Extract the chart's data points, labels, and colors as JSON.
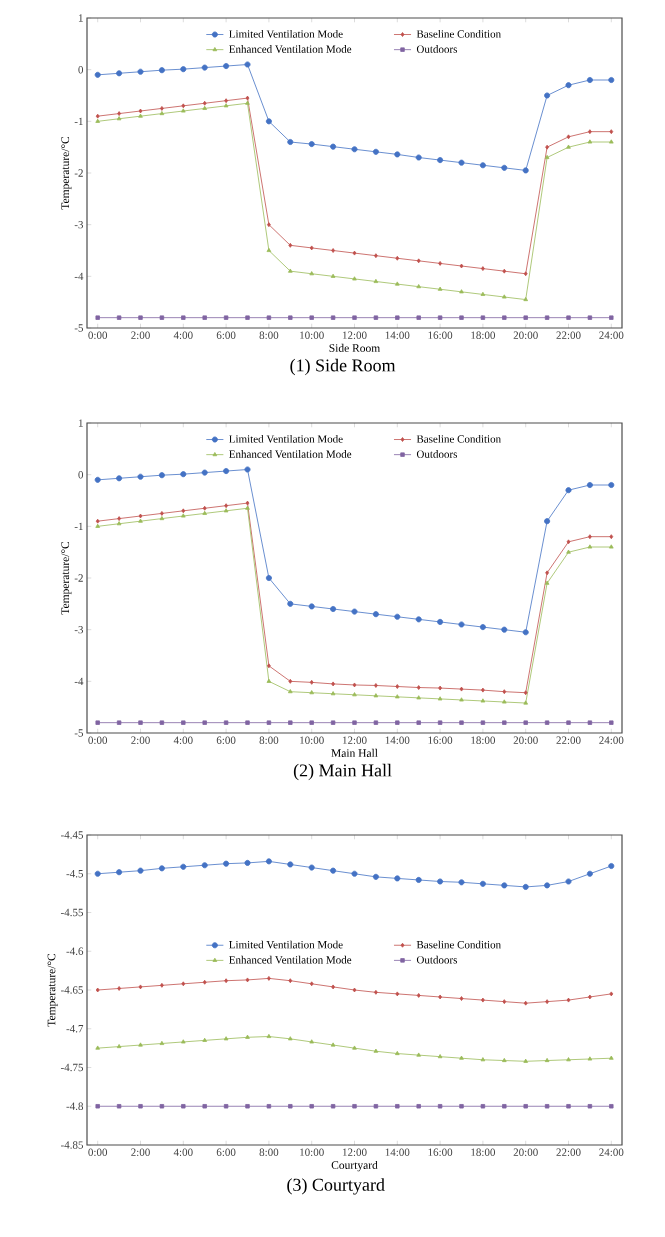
{
  "chart_data": [
    {
      "type": "line",
      "xlabel": "Side Room",
      "ylabel": "Temperature/°C",
      "annotations": [
        "(1) Side Room"
      ],
      "legend": "top",
      "x": [
        0,
        1,
        2,
        3,
        4,
        5,
        6,
        7,
        8,
        9,
        10,
        11,
        12,
        13,
        14,
        15,
        16,
        17,
        18,
        19,
        20,
        21,
        22,
        23,
        24
      ],
      "xlim": [
        -0.5,
        24.5
      ],
      "ylim": [
        -5,
        1
      ],
      "yticks": [
        -5,
        -4,
        -3,
        -2,
        -1,
        0,
        1
      ],
      "xticks": [
        {
          "value": 0,
          "label": "0:00"
        },
        {
          "value": 2,
          "label": "2:00"
        },
        {
          "value": 4,
          "label": "4:00"
        },
        {
          "value": 6,
          "label": "6:00"
        },
        {
          "value": 8,
          "label": "8:00"
        },
        {
          "value": 10,
          "label": "10:00"
        },
        {
          "value": 12,
          "label": "12:00"
        },
        {
          "value": 14,
          "label": "14:00"
        },
        {
          "value": 16,
          "label": "16:00"
        },
        {
          "value": 18,
          "label": "18:00"
        },
        {
          "value": 20,
          "label": "20:00"
        },
        {
          "value": 22,
          "label": "22:00"
        },
        {
          "value": 24,
          "label": "24:00"
        }
      ],
      "series": [
        {
          "name": "Limited Ventilation Mode",
          "color": "#4472c4",
          "marker": "circle",
          "values": [
            -0.1,
            -0.07,
            -0.04,
            -0.01,
            0.01,
            0.04,
            0.07,
            0.1,
            -1.0,
            -1.4,
            -1.44,
            -1.49,
            -1.54,
            -1.59,
            -1.64,
            -1.7,
            -1.75,
            -1.8,
            -1.85,
            -1.9,
            -1.95,
            -0.5,
            -0.3,
            -0.2,
            -0.2
          ]
        },
        {
          "name": "Baseline Condition",
          "color": "#c0504d",
          "marker": "diamond",
          "values": [
            -0.9,
            -0.85,
            -0.8,
            -0.75,
            -0.7,
            -0.65,
            -0.6,
            -0.55,
            -3.0,
            -3.4,
            -3.45,
            -3.5,
            -3.55,
            -3.6,
            -3.65,
            -3.7,
            -3.75,
            -3.8,
            -3.85,
            -3.9,
            -3.95,
            -1.5,
            -1.3,
            -1.2,
            -1.2
          ]
        },
        {
          "name": "Enhanced Ventilation Mode",
          "color": "#9bbb59",
          "marker": "triangle",
          "values": [
            -1.0,
            -0.95,
            -0.9,
            -0.85,
            -0.8,
            -0.75,
            -0.7,
            -0.65,
            -3.5,
            -3.9,
            -3.95,
            -4.0,
            -4.05,
            -4.1,
            -4.15,
            -4.2,
            -4.25,
            -4.3,
            -4.35,
            -4.4,
            -4.45,
            -1.7,
            -1.5,
            -1.4,
            -1.4
          ]
        },
        {
          "name": "Outdoors",
          "color": "#8064a2",
          "marker": "square",
          "values": [
            -4.8,
            -4.8,
            -4.8,
            -4.8,
            -4.8,
            -4.8,
            -4.8,
            -4.8,
            -4.8,
            -4.8,
            -4.8,
            -4.8,
            -4.8,
            -4.8,
            -4.8,
            -4.8,
            -4.8,
            -4.8,
            -4.8,
            -4.8,
            -4.8,
            -4.8,
            -4.8,
            -4.8,
            -4.8
          ]
        }
      ]
    },
    {
      "type": "line",
      "xlabel": "Main Hall",
      "ylabel": "Temperature/°C",
      "annotations": [
        "(2) Main Hall"
      ],
      "legend": "top",
      "x": [
        0,
        1,
        2,
        3,
        4,
        5,
        6,
        7,
        8,
        9,
        10,
        11,
        12,
        13,
        14,
        15,
        16,
        17,
        18,
        19,
        20,
        21,
        22,
        23,
        24
      ],
      "xlim": [
        -0.5,
        24.5
      ],
      "ylim": [
        -5,
        1
      ],
      "yticks": [
        -5,
        -4,
        -3,
        -2,
        -1,
        0,
        1
      ],
      "xticks": [
        {
          "value": 0,
          "label": "0:00"
        },
        {
          "value": 2,
          "label": "2:00"
        },
        {
          "value": 4,
          "label": "4:00"
        },
        {
          "value": 6,
          "label": "6:00"
        },
        {
          "value": 8,
          "label": "8:00"
        },
        {
          "value": 10,
          "label": "10:00"
        },
        {
          "value": 12,
          "label": "12:00"
        },
        {
          "value": 14,
          "label": "14:00"
        },
        {
          "value": 16,
          "label": "16:00"
        },
        {
          "value": 18,
          "label": "18:00"
        },
        {
          "value": 20,
          "label": "20:00"
        },
        {
          "value": 22,
          "label": "22:00"
        },
        {
          "value": 24,
          "label": "24:00"
        }
      ],
      "series": [
        {
          "name": "Limited Ventilation Mode",
          "color": "#4472c4",
          "marker": "circle",
          "values": [
            -0.1,
            -0.07,
            -0.04,
            -0.01,
            0.01,
            0.04,
            0.07,
            0.1,
            -2.0,
            -2.5,
            -2.55,
            -2.6,
            -2.65,
            -2.7,
            -2.75,
            -2.8,
            -2.85,
            -2.9,
            -2.95,
            -3.0,
            -3.05,
            -0.9,
            -0.3,
            -0.2,
            -0.2
          ]
        },
        {
          "name": "Baseline Condition",
          "color": "#c0504d",
          "marker": "diamond",
          "values": [
            -0.9,
            -0.85,
            -0.8,
            -0.75,
            -0.7,
            -0.65,
            -0.6,
            -0.55,
            -3.7,
            -4.0,
            -4.02,
            -4.05,
            -4.07,
            -4.08,
            -4.1,
            -4.12,
            -4.13,
            -4.15,
            -4.17,
            -4.2,
            -4.22,
            -1.9,
            -1.3,
            -1.2,
            -1.2
          ]
        },
        {
          "name": "Enhanced Ventilation Mode",
          "color": "#9bbb59",
          "marker": "triangle",
          "values": [
            -1.0,
            -0.95,
            -0.9,
            -0.85,
            -0.8,
            -0.75,
            -0.7,
            -0.65,
            -4.0,
            -4.2,
            -4.22,
            -4.24,
            -4.26,
            -4.28,
            -4.3,
            -4.32,
            -4.34,
            -4.36,
            -4.38,
            -4.4,
            -4.42,
            -2.1,
            -1.5,
            -1.4,
            -1.4
          ]
        },
        {
          "name": "Outdoors",
          "color": "#8064a2",
          "marker": "square",
          "values": [
            -4.8,
            -4.8,
            -4.8,
            -4.8,
            -4.8,
            -4.8,
            -4.8,
            -4.8,
            -4.8,
            -4.8,
            -4.8,
            -4.8,
            -4.8,
            -4.8,
            -4.8,
            -4.8,
            -4.8,
            -4.8,
            -4.8,
            -4.8,
            -4.8,
            -4.8,
            -4.8,
            -4.8,
            -4.8
          ]
        }
      ]
    },
    {
      "type": "line",
      "xlabel": "Courtyard",
      "ylabel": "Temperature/°C",
      "annotations": [
        "(3) Courtyard"
      ],
      "legend": "center",
      "x": [
        0,
        1,
        2,
        3,
        4,
        5,
        6,
        7,
        8,
        9,
        10,
        11,
        12,
        13,
        14,
        15,
        16,
        17,
        18,
        19,
        20,
        21,
        22,
        23,
        24
      ],
      "xlim": [
        -0.5,
        24.5
      ],
      "ylim": [
        -4.85,
        -4.45
      ],
      "yticks": [
        -4.85,
        -4.8,
        -4.75,
        -4.7,
        -4.65,
        -4.6,
        -4.55,
        -4.5,
        -4.45
      ],
      "xticks": [
        {
          "value": 0,
          "label": "0:00"
        },
        {
          "value": 2,
          "label": "2:00"
        },
        {
          "value": 4,
          "label": "4:00"
        },
        {
          "value": 6,
          "label": "6:00"
        },
        {
          "value": 8,
          "label": "8:00"
        },
        {
          "value": 10,
          "label": "10:00"
        },
        {
          "value": 12,
          "label": "12:00"
        },
        {
          "value": 14,
          "label": "14:00"
        },
        {
          "value": 16,
          "label": "16:00"
        },
        {
          "value": 18,
          "label": "18:00"
        },
        {
          "value": 20,
          "label": "20:00"
        },
        {
          "value": 22,
          "label": "22:00"
        },
        {
          "value": 24,
          "label": "24:00"
        }
      ],
      "series": [
        {
          "name": "Limited Ventilation Mode",
          "color": "#4472c4",
          "marker": "circle",
          "values": [
            -4.5,
            -4.498,
            -4.496,
            -4.493,
            -4.491,
            -4.489,
            -4.487,
            -4.486,
            -4.484,
            -4.488,
            -4.492,
            -4.496,
            -4.5,
            -4.504,
            -4.506,
            -4.508,
            -4.51,
            -4.511,
            -4.513,
            -4.515,
            -4.517,
            -4.515,
            -4.51,
            -4.5,
            -4.49
          ]
        },
        {
          "name": "Baseline Condition",
          "color": "#c0504d",
          "marker": "diamond",
          "values": [
            -4.65,
            -4.648,
            -4.646,
            -4.644,
            -4.642,
            -4.64,
            -4.638,
            -4.637,
            -4.635,
            -4.638,
            -4.642,
            -4.646,
            -4.65,
            -4.653,
            -4.655,
            -4.657,
            -4.659,
            -4.661,
            -4.663,
            -4.665,
            -4.667,
            -4.665,
            -4.663,
            -4.659,
            -4.655
          ]
        },
        {
          "name": "Enhanced Ventilation Mode",
          "color": "#9bbb59",
          "marker": "triangle",
          "values": [
            -4.725,
            -4.723,
            -4.721,
            -4.719,
            -4.717,
            -4.715,
            -4.713,
            -4.711,
            -4.71,
            -4.713,
            -4.717,
            -4.721,
            -4.725,
            -4.729,
            -4.732,
            -4.734,
            -4.736,
            -4.738,
            -4.74,
            -4.741,
            -4.742,
            -4.741,
            -4.74,
            -4.739,
            -4.738
          ]
        },
        {
          "name": "Outdoors",
          "color": "#8064a2",
          "marker": "square",
          "values": [
            -4.8,
            -4.8,
            -4.8,
            -4.8,
            -4.8,
            -4.8,
            -4.8,
            -4.8,
            -4.8,
            -4.8,
            -4.8,
            -4.8,
            -4.8,
            -4.8,
            -4.8,
            -4.8,
            -4.8,
            -4.8,
            -4.8,
            -4.8,
            -4.8,
            -4.8,
            -4.8,
            -4.8,
            -4.8
          ]
        }
      ]
    }
  ]
}
